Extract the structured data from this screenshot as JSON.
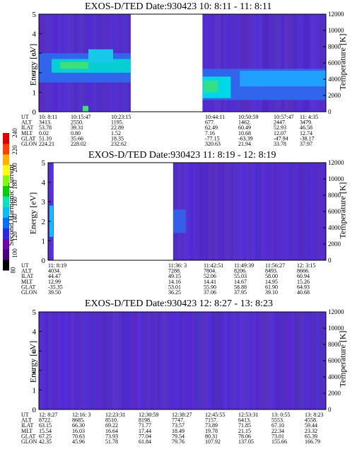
{
  "colorbar": {
    "label": "Second Harmonic Current",
    "ticks": [
      "240",
      "220",
      "200",
      "180",
      "160",
      "140",
      "120",
      "100",
      "80"
    ],
    "colors": [
      "#000000",
      "#4b0082",
      "#7000b0",
      "#2a2ae0",
      "#0070ff",
      "#00bfff",
      "#00e5c0",
      "#00d000",
      "#7fff00",
      "#ffff00",
      "#ffb000",
      "#ff4000",
      "#e00000"
    ]
  },
  "chart_data": [
    {
      "type": "heatmap",
      "title": "EXOS-D/TED   Date:930423  10: 8:11 - 11: 8:11",
      "ylabel": "Energy [eV]",
      "ylabel_right": "Temperature [K]",
      "ylim": [
        0,
        5
      ],
      "ylim_right": [
        0,
        12000
      ],
      "yticks": [
        "0",
        "1",
        "2",
        "3",
        "4",
        "5"
      ],
      "yticks_right": [
        "0",
        "2000",
        "4000",
        "6000",
        "8000",
        "10000",
        "12000"
      ],
      "gap": [
        0.32,
        0.57
      ],
      "orbit_table": {
        "labels": [
          "UT",
          "ALT",
          "ILAT",
          "MLT",
          "GLAT",
          "GLON"
        ],
        "columns": [
          [
            "10: 8:11",
            "3413.",
            "53.78",
            "0.02",
            "51.10",
            "224.21"
          ],
          [
            "10:15:47",
            "2550.",
            "39.31",
            "0.80",
            "35.66",
            "228.02"
          ],
          [
            "10:23:15",
            "1195.",
            "22.89",
            "1.52",
            "18.35",
            "232.62"
          ],
          [
            "10:44:11",
            "677.",
            "62.49",
            "7.16",
            "-77.15",
            "320.63"
          ],
          [
            "10:50:59",
            "1462.",
            "60.49",
            "10.68",
            "-63.39",
            "21.94"
          ],
          [
            "10:57:47",
            "2447.",
            "52.93",
            "12.07",
            "-47.94",
            "33.78"
          ],
          [
            "11: 4:35",
            "3479.",
            "46.58",
            "12.74",
            "-38.17",
            "37.97"
          ]
        ]
      }
    },
    {
      "type": "heatmap",
      "title": "EXOS-D/TED   Date:930423  11: 8:19 - 12: 8:19",
      "ylabel": "Energy [eV]",
      "ylabel_right": "Temperature [K]",
      "ylim": [
        0,
        5
      ],
      "ylim_right": [
        0,
        12000
      ],
      "yticks": [
        "0",
        "1",
        "2",
        "3",
        "4",
        "5"
      ],
      "yticks_right": [
        "0",
        "2000",
        "4000",
        "6000",
        "8000",
        "10000",
        "12000"
      ],
      "gap": [
        0.02,
        0.45
      ],
      "orbit_table": {
        "labels": [
          "UT",
          "ALT",
          "ILAT",
          "MLT",
          "GLAT",
          "GLON"
        ],
        "columns": [
          [
            "11: 8:19",
            "4034.",
            "44.47",
            "12.99",
            "-35.35",
            "39.50"
          ],
          [
            "11:36: 3",
            "7288.",
            "49.15",
            "14.16",
            "53.01",
            "36.25"
          ],
          [
            "11:42:51",
            "7804.",
            "52.06",
            "14.41",
            "55.90",
            "37.06"
          ],
          [
            "11:49:39",
            "8206.",
            "55.03",
            "14.67",
            "58.88",
            "37.95"
          ],
          [
            "11:56:27",
            "8493.",
            "58.00",
            "14.95",
            "61.90",
            "39.10"
          ],
          [
            "12: 3:15",
            "8666.",
            "60.94",
            "15.26",
            "64.93",
            "40.68"
          ]
        ]
      }
    },
    {
      "type": "heatmap",
      "title": "EXOS-D/TED   Date:930423  12: 8:27 - 13: 8:23",
      "ylabel": "Energy [eV]",
      "ylabel_right": "Temperature [K]",
      "ylim": [
        0,
        5
      ],
      "ylim_right": [
        0,
        12000
      ],
      "yticks": [
        "0",
        "1",
        "2",
        "3",
        "4",
        "5"
      ],
      "yticks_right": [
        "0",
        "2000",
        "4000",
        "6000",
        "8000",
        "10000",
        "12000"
      ],
      "orbit_table": {
        "labels": [
          "UT",
          "ALT",
          "ILAT",
          "MLT",
          "GLAT",
          "GLON"
        ],
        "columns": [
          [
            "12: 8:27",
            "8722.",
            "63.15",
            "15.54",
            "67.25",
            "42.35"
          ],
          [
            "12:16: 3",
            "8685.",
            "66.30",
            "16.03",
            "70.63",
            "45.96"
          ],
          [
            "12:23:31",
            "8510.",
            "69.22",
            "16.64",
            "73.93",
            "51.78"
          ],
          [
            "12:30:59",
            "8198.",
            "71.77",
            "17.44",
            "77.04",
            "61.84"
          ],
          [
            "12:38:27",
            "7747.",
            "73.57",
            "18.49",
            "79.54",
            "79.76"
          ],
          [
            "12:45:55",
            "7157.",
            "73.89",
            "19.78",
            "80.31",
            "107.92"
          ],
          [
            "12:53:31",
            "6413.",
            "71.85",
            "21.15",
            "78.06",
            "137.05"
          ],
          [
            "13: 0:55",
            "5553.",
            "67.10",
            "22.34",
            "73.01",
            "155.66"
          ],
          [
            "13: 8:23",
            "4558.",
            "59.44",
            "23.32",
            "65.39",
            "166.79"
          ]
        ]
      }
    }
  ]
}
